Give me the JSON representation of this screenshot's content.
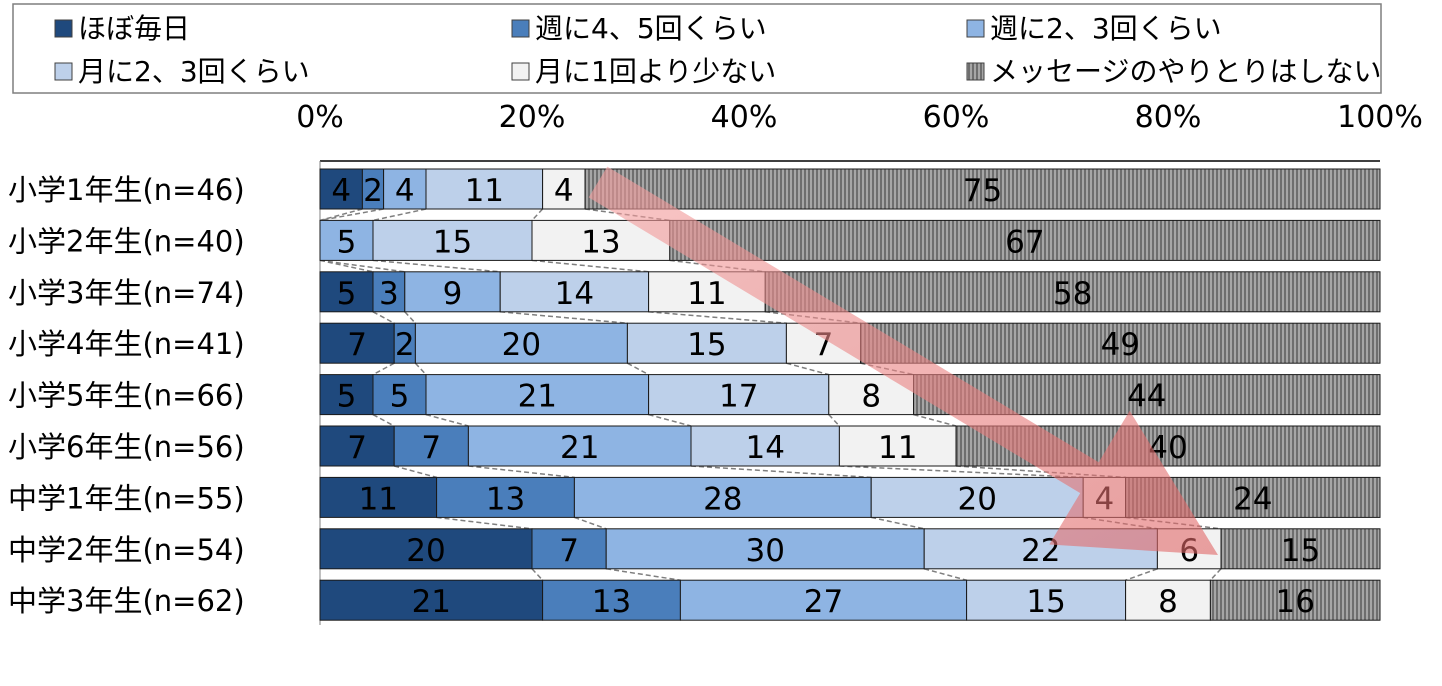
{
  "chart_data": {
    "type": "bar",
    "orientation": "horizontal",
    "stacked": "percent",
    "xlim": [
      0,
      100
    ],
    "x_ticks": [
      "0%",
      "20%",
      "40%",
      "60%",
      "80%",
      "100%"
    ],
    "categories": [
      "小学1年生(n=46)",
      "小学2年生(n=40)",
      "小学3年生(n=74)",
      "小学4年生(n=41)",
      "小学5年生(n=66)",
      "小学6年生(n=56)",
      "中学1年生(n=55)",
      "中学2年生(n=54)",
      "中学3年生(n=62)"
    ],
    "series": [
      {
        "name": "ほぼ毎日",
        "color": "#1f497d",
        "values": [
          4,
          0,
          5,
          7,
          5,
          7,
          11,
          20,
          21
        ]
      },
      {
        "name": "週に4、5回くらい",
        "color": "#4a7ebb",
        "values": [
          2,
          0,
          3,
          2,
          5,
          7,
          13,
          7,
          13
        ]
      },
      {
        "name": "週に2、3回くらい",
        "color": "#8eb4e3",
        "values": [
          4,
          5,
          9,
          20,
          21,
          21,
          28,
          30,
          27
        ]
      },
      {
        "name": "月に2、3回くらい",
        "color": "#bdd0ea",
        "values": [
          11,
          15,
          14,
          15,
          17,
          14,
          20,
          22,
          15
        ]
      },
      {
        "name": "月に1回より少ない",
        "color": "#f2f2f2",
        "values": [
          4,
          13,
          11,
          7,
          8,
          11,
          4,
          6,
          8
        ]
      },
      {
        "name": "メッセージのやりとりはしない",
        "color": "#8c8c8c",
        "pattern": "vertical-stripes",
        "values": [
          75,
          67,
          58,
          49,
          44,
          40,
          24,
          15,
          16
        ]
      }
    ],
    "legend_position": "top",
    "connector_lines": true,
    "annotation": {
      "type": "arrow",
      "direction": "down-right",
      "color": "#f08080"
    }
  }
}
